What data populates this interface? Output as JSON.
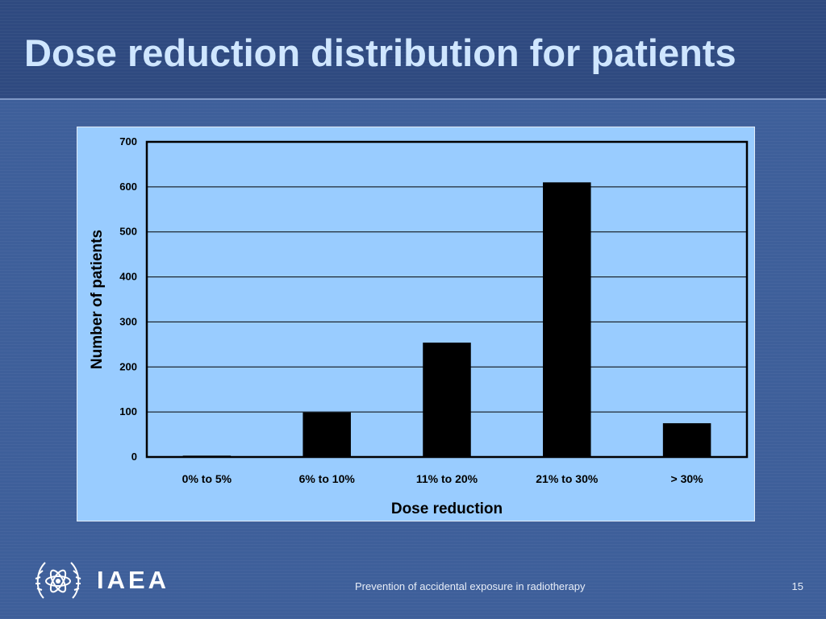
{
  "slide": {
    "title": "Dose reduction distribution for patients",
    "footer_org": "IAEA",
    "footer_caption": "Prevention of accidental exposure in radiotherapy",
    "page_number": "15"
  },
  "colors": {
    "background": "#3e5f9a",
    "title_text": "#cfe6ff",
    "chart_background": "#99ccff",
    "bar_fill": "#000000"
  },
  "icons": {
    "logo": "iaea-emblem-icon"
  },
  "chart_data": {
    "type": "bar",
    "categories": [
      "0% to 5%",
      "6% to 10%",
      "11% to 20%",
      "21% to 30%",
      "> 30%"
    ],
    "values": [
      3,
      99,
      254,
      610,
      75
    ],
    "title": "",
    "xlabel": "Dose reduction",
    "ylabel": "Number of patients",
    "ylim": [
      0,
      700
    ],
    "yticks": [
      0,
      100,
      200,
      300,
      400,
      500,
      600,
      700
    ],
    "grid": true,
    "legend": "none"
  }
}
